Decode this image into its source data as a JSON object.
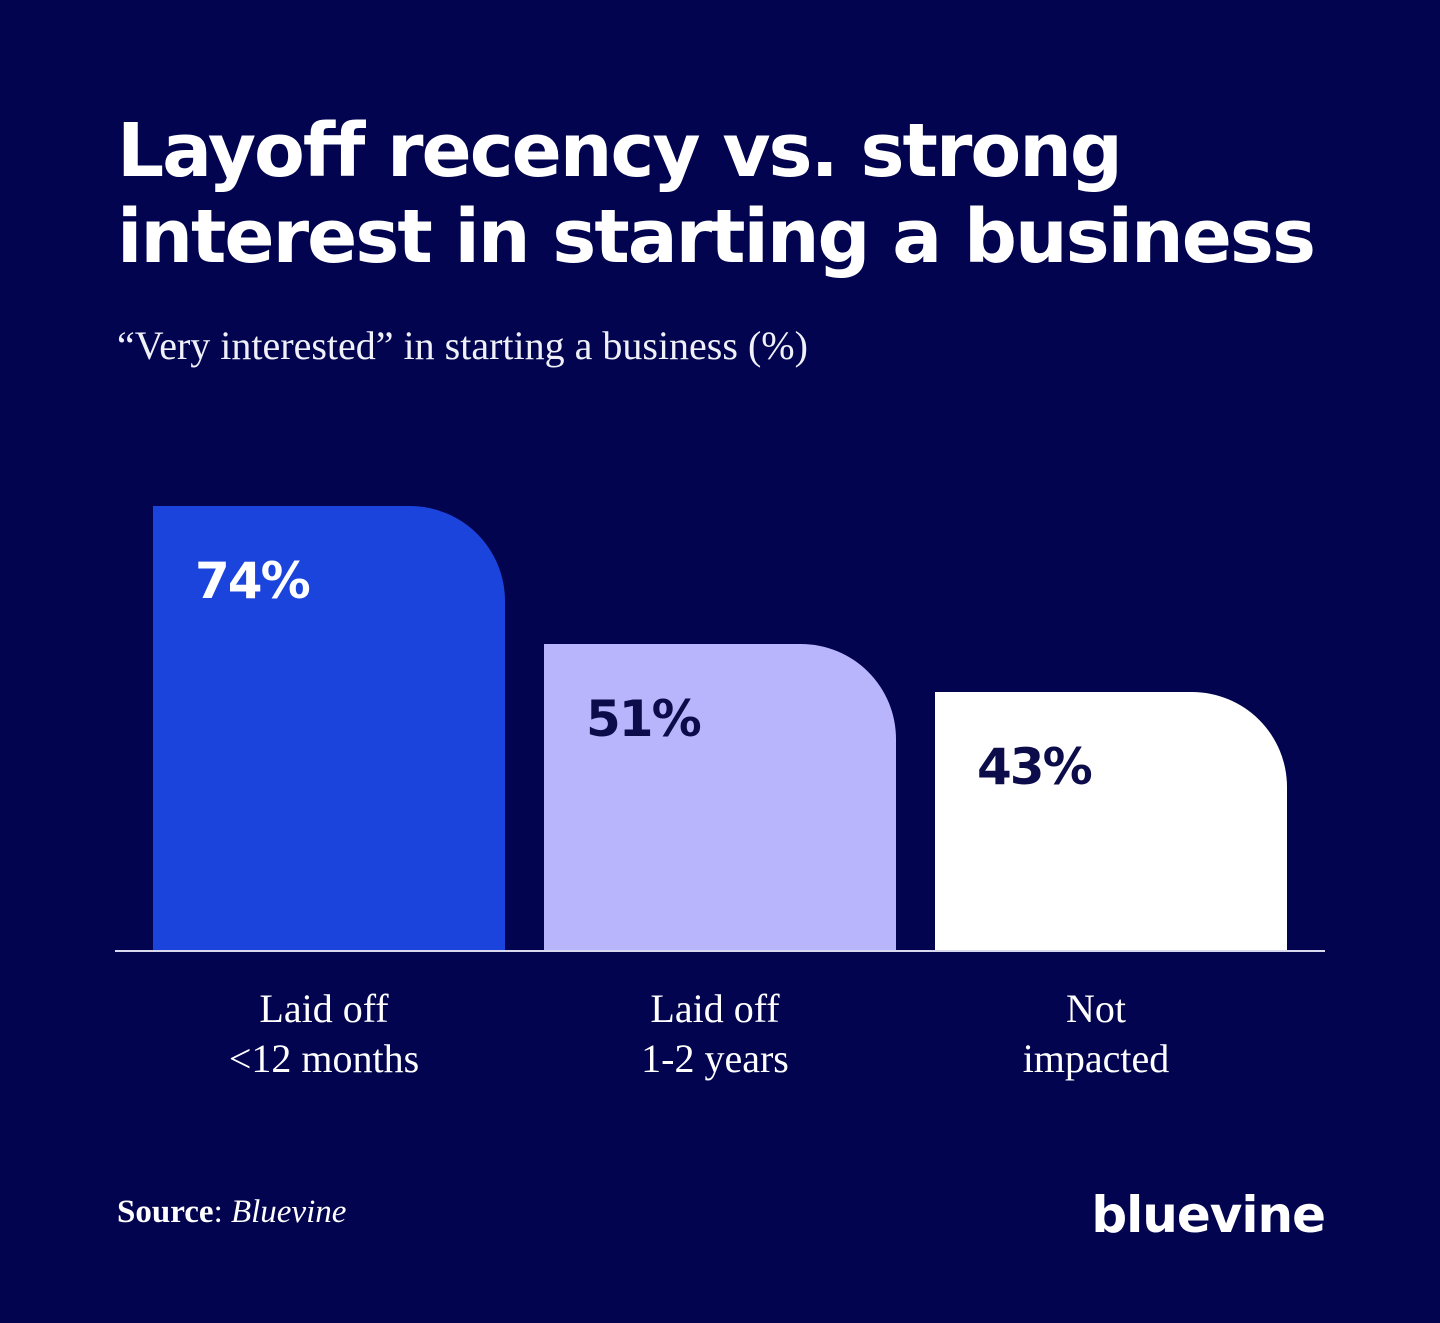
{
  "title": "Layoff recency vs. strong interest in starting a business",
  "subtitle": "“Very interested” in starting a business (%)",
  "chart_data": {
    "type": "bar",
    "title": "Layoff recency vs. strong interest in starting a business",
    "ylabel": "“Very interested” in starting a business (%)",
    "categories": [
      [
        "Laid off",
        "<12 months"
      ],
      [
        "Laid off",
        "1-2 years"
      ],
      [
        "Not",
        "impacted"
      ]
    ],
    "values": [
      74,
      51,
      43
    ],
    "value_labels": [
      "74%",
      "51%",
      "43%"
    ],
    "colors": [
      "#1b44dc",
      "#b8b5fc",
      "#ffffff"
    ],
    "label_colors": [
      "#ffffff",
      "#0c0c4a",
      "#0c0c4a"
    ],
    "ylim": [
      0,
      74
    ],
    "grid": false
  },
  "source": {
    "label": "Source",
    "value": "Bluevine"
  },
  "logo": "bluevine",
  "colors": {
    "background": "#02044f"
  }
}
